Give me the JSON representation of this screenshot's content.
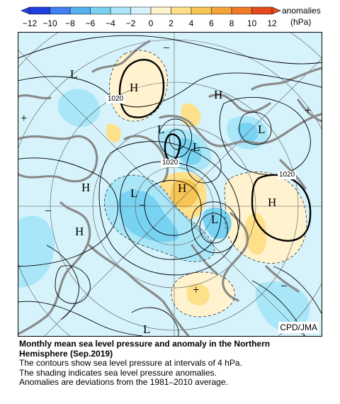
{
  "legend": {
    "tick_labels": [
      "−12",
      "−10",
      "−8",
      "−6",
      "−4",
      "−2",
      "0",
      "2",
      "4",
      "6",
      "8",
      "10",
      "12"
    ],
    "unit_line1": "anomalies",
    "unit_line2": "(hPa)",
    "colors": [
      "#2040e0",
      "#3f7fef",
      "#55b0f0",
      "#78d2f2",
      "#a9e6f8",
      "#d6f3fb",
      "#fff3cf",
      "#ffe08a",
      "#f7c555",
      "#f3a53a",
      "#ef7a28",
      "#e64a1c"
    ]
  },
  "map": {
    "center_symbols": [
      {
        "text": "L"
      },
      {
        "text": "H"
      },
      {
        "text": "H"
      },
      {
        "text": "L"
      },
      {
        "text": "H"
      },
      {
        "text": "L"
      },
      {
        "text": "L"
      },
      {
        "text": "H"
      },
      {
        "text": "L"
      },
      {
        "text": "L"
      },
      {
        "text": "H"
      },
      {
        "text": "H"
      },
      {
        "text": "L"
      }
    ],
    "sign_labels": [
      {
        "text": "−"
      },
      {
        "text": "+"
      },
      {
        "text": "+"
      },
      {
        "text": "−"
      },
      {
        "text": "−"
      },
      {
        "text": "+"
      },
      {
        "text": "−"
      }
    ],
    "contour_labels": [
      "1020",
      "1020",
      "1020"
    ],
    "credit": "CPD/JMA"
  },
  "caption": {
    "title_line1": "Monthly mean sea level pressure and anomaly in the Northern",
    "title_line2": "Hemisphere (Sep.2019)",
    "line1": "The contours show sea level pressure at intervals of 4 hPa.",
    "line2": "The shading indicates sea level pressure anomalies.",
    "line3": "Anomalies are deviations from the 1981–2010 average."
  }
}
